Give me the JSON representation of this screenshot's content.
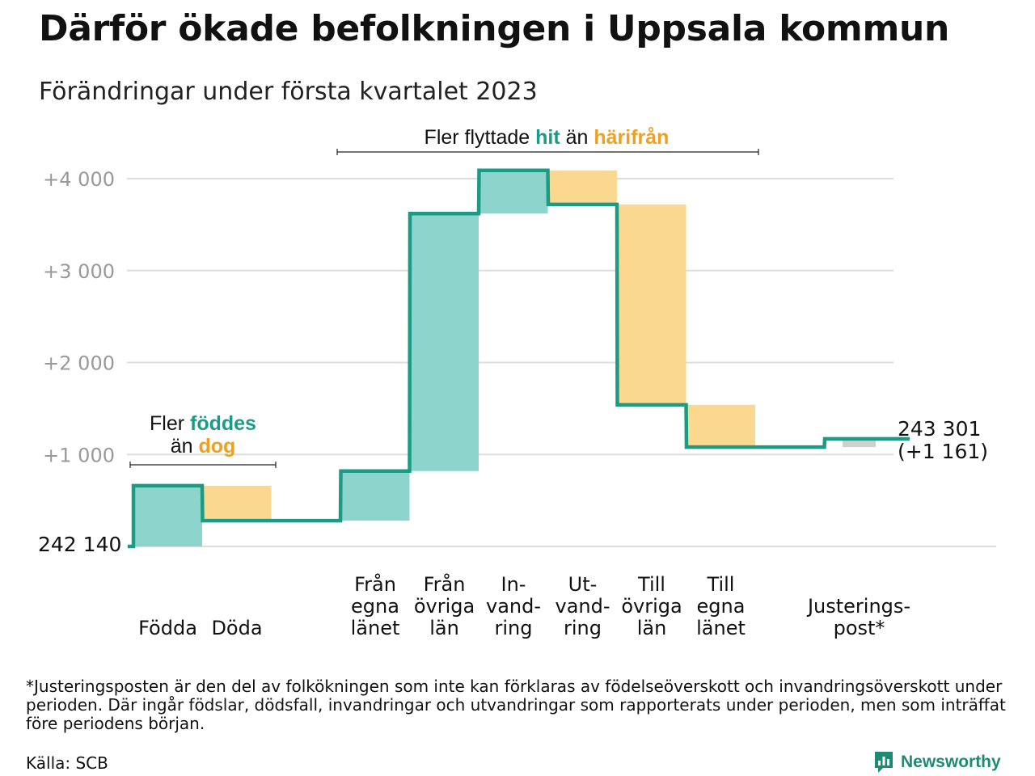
{
  "title": "Därför ökade befolkningen i Uppsala kommun",
  "subtitle": "Förändringar under första kvartalet 2023",
  "annotations": {
    "births_line1": "Fler ",
    "births_hl1": "föddes",
    "births_line2": "än ",
    "births_hl2": "dog",
    "moves_pre": "Fler flyttade ",
    "moves_hl1": "hit",
    "moves_mid": " än ",
    "moves_hl2": "härifrån"
  },
  "colors": {
    "increase_fill": "#8dd5cc",
    "decrease_fill": "#fbd88f",
    "adjustment_fill": "#d0d0d0",
    "line": "#1b9b85",
    "highlight_green": "#1b9b85",
    "highlight_orange": "#f0a020",
    "grid": "#dddddd",
    "tick_text": "#999999"
  },
  "chart_data": {
    "type": "waterfall",
    "title": "Därför ökade befolkningen i Uppsala kommun",
    "subtitle": "Förändringar under första kvartalet 2023",
    "start_value": 242140,
    "start_label": "242 140",
    "end_value": 243301,
    "end_label": "243 301",
    "end_change_label": "(+1 161)",
    "ylim": [
      0,
      4200
    ],
    "yticks": [
      {
        "value": 1000,
        "label": "+1 000"
      },
      {
        "value": 2000,
        "label": "+2 000"
      },
      {
        "value": 3000,
        "label": "+3 000"
      },
      {
        "value": 4000,
        "label": "+4 000"
      }
    ],
    "categories": [
      {
        "label": [
          "Födda"
        ],
        "change": 660,
        "kind": "increase"
      },
      {
        "label": [
          "Döda"
        ],
        "change": -380,
        "kind": "decrease"
      },
      {
        "label": [],
        "change": 0,
        "kind": "spacer"
      },
      {
        "label": [
          "Från",
          "egna",
          "länet"
        ],
        "change": 540,
        "kind": "increase"
      },
      {
        "label": [
          "Från",
          "övriga",
          "län"
        ],
        "change": 2800,
        "kind": "increase"
      },
      {
        "label": [
          "In-",
          "vand-",
          "ring"
        ],
        "change": 470,
        "kind": "increase"
      },
      {
        "label": [
          "Ut-",
          "vand-",
          "ring"
        ],
        "change": -370,
        "kind": "decrease"
      },
      {
        "label": [
          "Till",
          "övriga",
          "län"
        ],
        "change": -2180,
        "kind": "decrease"
      },
      {
        "label": [
          "Till",
          "egna",
          "länet"
        ],
        "change": -460,
        "kind": "decrease"
      },
      {
        "label": [],
        "change": 0,
        "kind": "spacer"
      },
      {
        "label": [
          "Justerings-",
          "post*"
        ],
        "change": 90,
        "kind": "adjustment"
      }
    ],
    "grid": true
  },
  "footnote": "*Justeringsposten är den del av folkökningen som inte kan förklaras av födelseöverskott och invandringsöverskott under perioden. Där ingår födslar, dödsfall, invandringar och utvandringar som rapporterats under perioden, men som inträffat före periodens början.",
  "source": "Källa: SCB",
  "brand": "Newsworthy"
}
